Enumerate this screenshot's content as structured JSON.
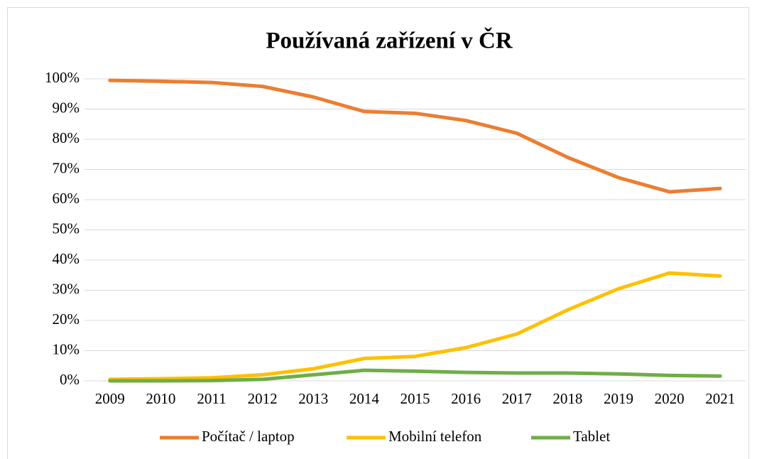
{
  "chart_data": {
    "type": "line",
    "title": "Používaná zařízení v ČR",
    "categories": [
      "2009",
      "2010",
      "2011",
      "2012",
      "2013",
      "2014",
      "2015",
      "2016",
      "2017",
      "2018",
      "2019",
      "2020",
      "2021"
    ],
    "series": [
      {
        "name": "Počítač / laptop",
        "color": "#ed7d31",
        "values": [
          99.5,
          99.2,
          98.8,
          97.5,
          94,
          89.2,
          88.6,
          86.2,
          82,
          74,
          67.3,
          62.6,
          63.7
        ]
      },
      {
        "name": "Mobilní telefon",
        "color": "#ffc000",
        "values": [
          0.5,
          0.7,
          1,
          2,
          4,
          7.4,
          8.1,
          11,
          15.5,
          23.5,
          30.5,
          35.7,
          34.7
        ]
      },
      {
        "name": "Tablet",
        "color": "#70ad47",
        "values": [
          0,
          0,
          0.1,
          0.5,
          2,
          3.5,
          3.2,
          2.8,
          2.6,
          2.6,
          2.3,
          1.8,
          1.6
        ]
      }
    ],
    "ylim": [
      0,
      100
    ],
    "yticks": [
      {
        "value": 0,
        "label": "0%"
      },
      {
        "value": 10,
        "label": "10%"
      },
      {
        "value": 20,
        "label": "20%"
      },
      {
        "value": 30,
        "label": "30%"
      },
      {
        "value": 40,
        "label": "40%"
      },
      {
        "value": 50,
        "label": "50%"
      },
      {
        "value": 60,
        "label": "60%"
      },
      {
        "value": 70,
        "label": "70%"
      },
      {
        "value": 80,
        "label": "80%"
      },
      {
        "value": 90,
        "label": "90%"
      },
      {
        "value": 100,
        "label": "100%"
      }
    ],
    "grid": true,
    "legend": "bottom"
  }
}
